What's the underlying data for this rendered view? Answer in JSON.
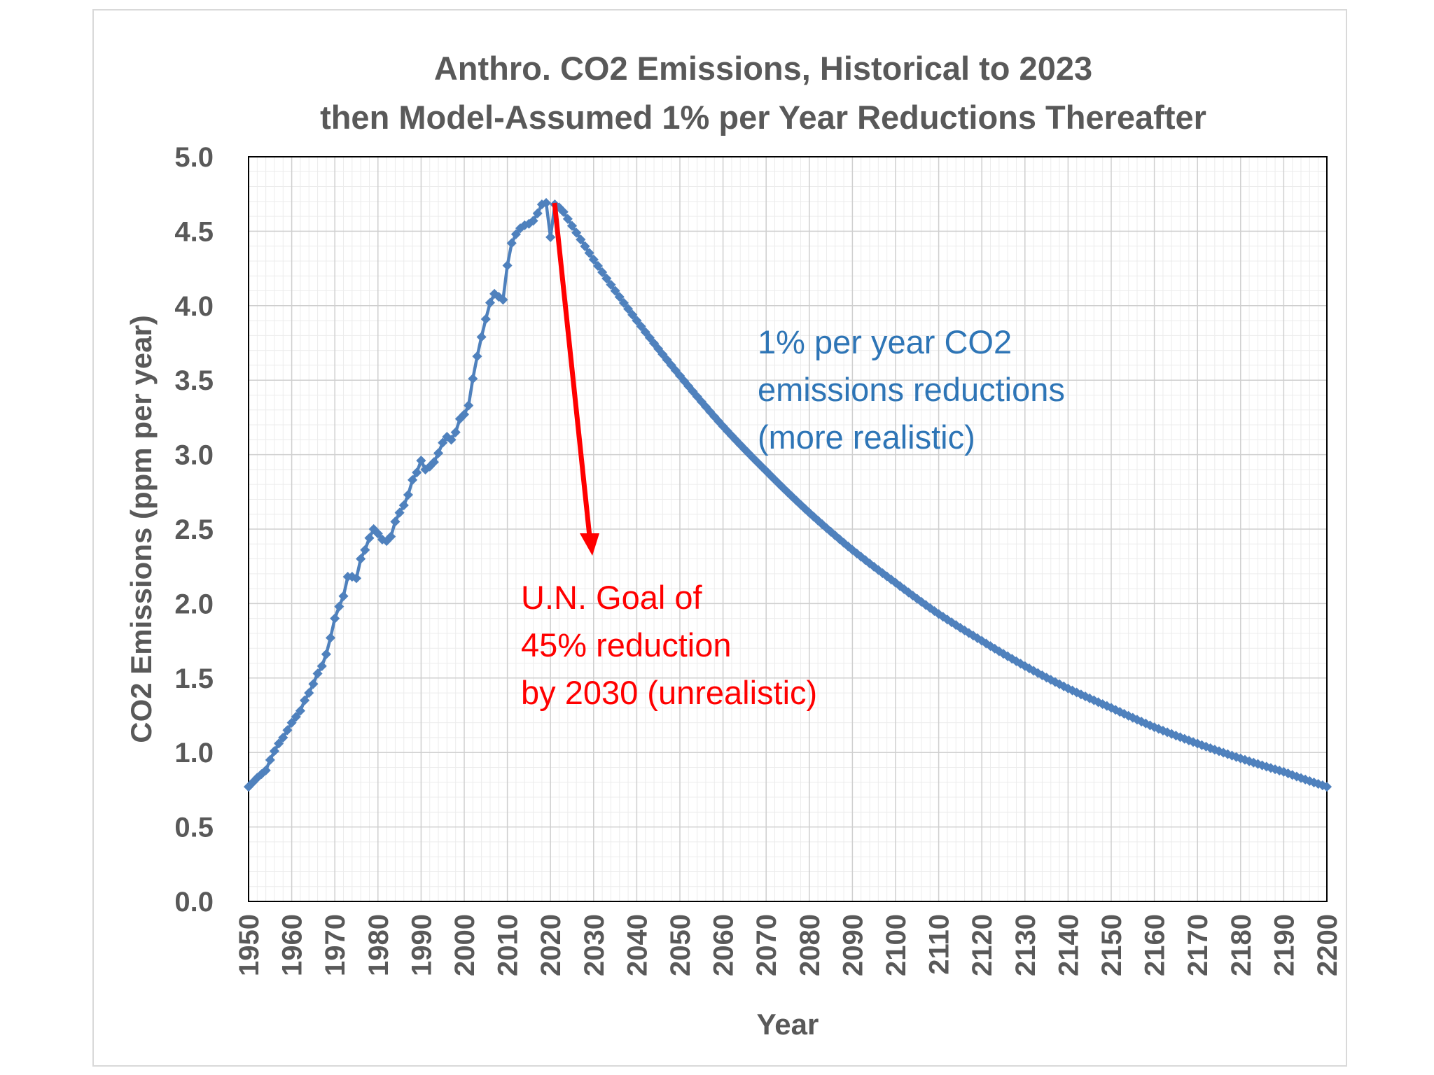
{
  "chart_data": {
    "type": "line",
    "title_line1": "Anthro. CO2 Emissions, Historical to 2023",
    "title_line2": "then Model-Assumed 1% per Year Reductions Thereafter",
    "xlabel": "Year",
    "ylabel": "CO2 Emissions (ppm per year)",
    "xlim": [
      1950,
      2200
    ],
    "ylim": [
      0,
      5
    ],
    "x_ticks": [
      "1950",
      "1960",
      "1970",
      "1980",
      "1990",
      "2000",
      "2010",
      "2020",
      "2030",
      "2040",
      "2050",
      "2060",
      "2070",
      "2080",
      "2090",
      "2100",
      "2110",
      "2120",
      "2130",
      "2140",
      "2150",
      "2160",
      "2170",
      "2180",
      "2190",
      "2200"
    ],
    "y_ticks": [
      "0.0",
      "0.5",
      "1.0",
      "1.5",
      "2.0",
      "2.5",
      "3.0",
      "3.5",
      "4.0",
      "4.5",
      "5.0"
    ],
    "grid": true,
    "series": [
      {
        "color": "#4f81bd",
        "x": [
          1950,
          1952,
          1954,
          1955,
          1956,
          1957,
          1958,
          1959,
          1960,
          1961,
          1962,
          1963,
          1964,
          1965,
          1966,
          1967,
          1968,
          1969,
          1970,
          1971,
          1972,
          1973,
          1974,
          1975,
          1976,
          1977,
          1978,
          1979,
          1980,
          1981,
          1982,
          1983,
          1984,
          1985,
          1986,
          1987,
          1988,
          1989,
          1990,
          1991,
          1992,
          1993,
          1994,
          1995,
          1996,
          1997,
          1998,
          1999,
          2000,
          2001,
          2002,
          2003,
          2004,
          2005,
          2006,
          2007,
          2008,
          2009,
          2010,
          2011,
          2012,
          2013,
          2014,
          2015,
          2016,
          2017,
          2018,
          2019,
          2020,
          2021,
          2022,
          2023,
          2030,
          2040,
          2050,
          2060,
          2070,
          2080,
          2090,
          2100,
          2110,
          2120,
          2130,
          2140,
          2150,
          2160,
          2170,
          2180,
          2190,
          2200
        ],
        "y": [
          0.77,
          0.83,
          0.88,
          0.95,
          1.01,
          1.06,
          1.1,
          1.15,
          1.2,
          1.24,
          1.28,
          1.35,
          1.4,
          1.46,
          1.53,
          1.58,
          1.66,
          1.77,
          1.9,
          1.98,
          2.05,
          2.18,
          2.18,
          2.17,
          2.3,
          2.36,
          2.44,
          2.5,
          2.47,
          2.43,
          2.42,
          2.45,
          2.55,
          2.61,
          2.66,
          2.73,
          2.83,
          2.88,
          2.96,
          2.9,
          2.92,
          2.95,
          3.01,
          3.08,
          3.12,
          3.1,
          3.15,
          3.24,
          3.27,
          3.33,
          3.51,
          3.66,
          3.79,
          3.91,
          4.02,
          4.08,
          4.06,
          4.04,
          4.27,
          4.42,
          4.48,
          4.52,
          4.54,
          4.55,
          4.57,
          4.62,
          4.68,
          4.69,
          4.46,
          4.68,
          4.66,
          4.63,
          4.31,
          3.9,
          3.53,
          3.19,
          2.89,
          2.61,
          2.36,
          2.14,
          1.93,
          1.75,
          1.58,
          1.43,
          1.3,
          1.17,
          1.06,
          0.96,
          0.87,
          0.77
        ]
      }
    ],
    "annotations": {
      "blue_line1": "1% per year CO2",
      "blue_line2": "emissions reductions",
      "blue_line3": "(more realistic)",
      "red_line1": "U.N. Goal of",
      "red_line2": "45% reduction",
      "red_line3": "by 2030 (unrealistic)",
      "blue_color": "#2e75b6",
      "red_color": "#ff0000"
    }
  }
}
